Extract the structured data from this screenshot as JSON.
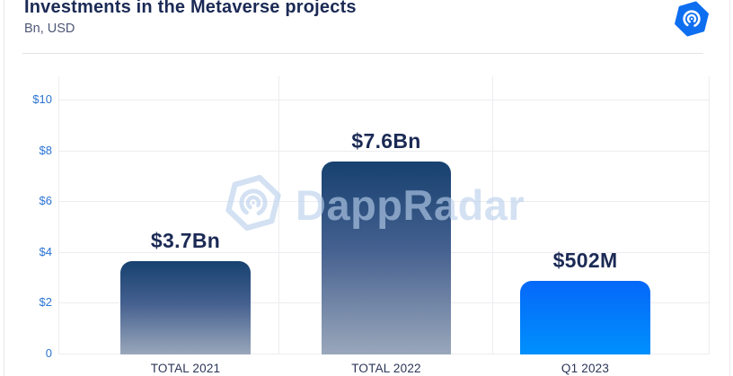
{
  "header": {
    "title": "Investments in the Metaverse projects",
    "subtitle": "Bn, USD"
  },
  "logo": {
    "name": "dappradar-hexagon-logo",
    "color": "#0e6ef0"
  },
  "watermark": {
    "text": "DappRadar"
  },
  "chart_data": {
    "type": "bar",
    "title": "Investments in the Metaverse projects",
    "units": "Bn, USD",
    "categories": [
      "TOTAL 2021",
      "TOTAL 2022",
      "Q1 2023"
    ],
    "values_bn": [
      3.7,
      7.6,
      0.502
    ],
    "value_labels": [
      "$3.7Bn",
      "$7.6Bn",
      "$502M"
    ],
    "display_heights_bn": [
      3.7,
      7.6,
      2.9
    ],
    "bar_styles": [
      "navy-gradient",
      "navy-gradient",
      "bright-blue"
    ],
    "y_axis": {
      "range": [
        0,
        10
      ],
      "ticks": [
        {
          "value": 10,
          "label": "$10"
        },
        {
          "value": 8,
          "label": "$8"
        },
        {
          "value": 6,
          "label": "$6"
        },
        {
          "value": 4,
          "label": "$4"
        },
        {
          "value": 2,
          "label": "$2"
        },
        {
          "value": 0,
          "label": "0"
        }
      ]
    },
    "grid": true,
    "legend": false,
    "colors": {
      "title_text": "#1b2a55",
      "axis_label_blue": "#2b74d3",
      "category_text": "#2b3557",
      "bar_gradient_top": "#174170",
      "bar_gradient_bottom": "#9aa7bb",
      "bar_bright_top": "#0568f9",
      "bar_bright_bottom": "#0090fc",
      "gridline": "#ededf1",
      "logo_blue": "#0e6ef0",
      "watermark_blue": "#b9d0ec"
    }
  }
}
